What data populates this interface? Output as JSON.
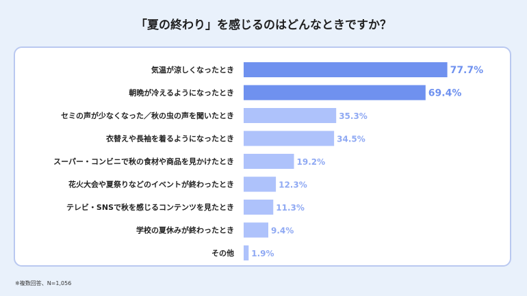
{
  "title": "「夏の終わり」を感じるのはどんなときですか？",
  "footnote": "※複数回答、N=1,056",
  "colors": {
    "background": "#e9f1fb",
    "card_border": "#b9c8f0",
    "bar_highlight": "#6f91ef",
    "bar_normal": "#aec2fb",
    "value_highlight": "#6f91ef",
    "value_normal": "#8fa9f3",
    "label": "#222222"
  },
  "chart_data": {
    "type": "bar",
    "orientation": "horizontal",
    "title": "「夏の終わり」を感じるのはどんなときですか？",
    "categories": [
      "気温が涼しくなったとき",
      "朝晩が冷えるようになったとき",
      "セミの声が少なくなった／秋の虫の声を聞いたとき",
      "衣替えや長袖を着るようになったとき",
      "スーパー・コンビニで秋の食材や商品を見かけたとき",
      "花火大会や夏祭りなどのイベントが終わったとき",
      "テレビ・SNSで秋を感じるコンテンツを見たとき",
      "学校の夏休みが終わったとき",
      "その他"
    ],
    "values": [
      77.7,
      69.4,
      35.3,
      34.5,
      19.2,
      12.3,
      11.3,
      9.4,
      1.9
    ],
    "value_labels": [
      "77.7%",
      "69.4%",
      "35.3%",
      "34.5%",
      "19.2%",
      "12.3%",
      "11.3%",
      "9.4%",
      "1.9%"
    ],
    "highlighted": [
      true,
      true,
      false,
      false,
      false,
      false,
      false,
      false,
      false
    ],
    "unit": "%",
    "xlim": [
      0,
      100
    ],
    "grid": false,
    "legend": "none"
  }
}
